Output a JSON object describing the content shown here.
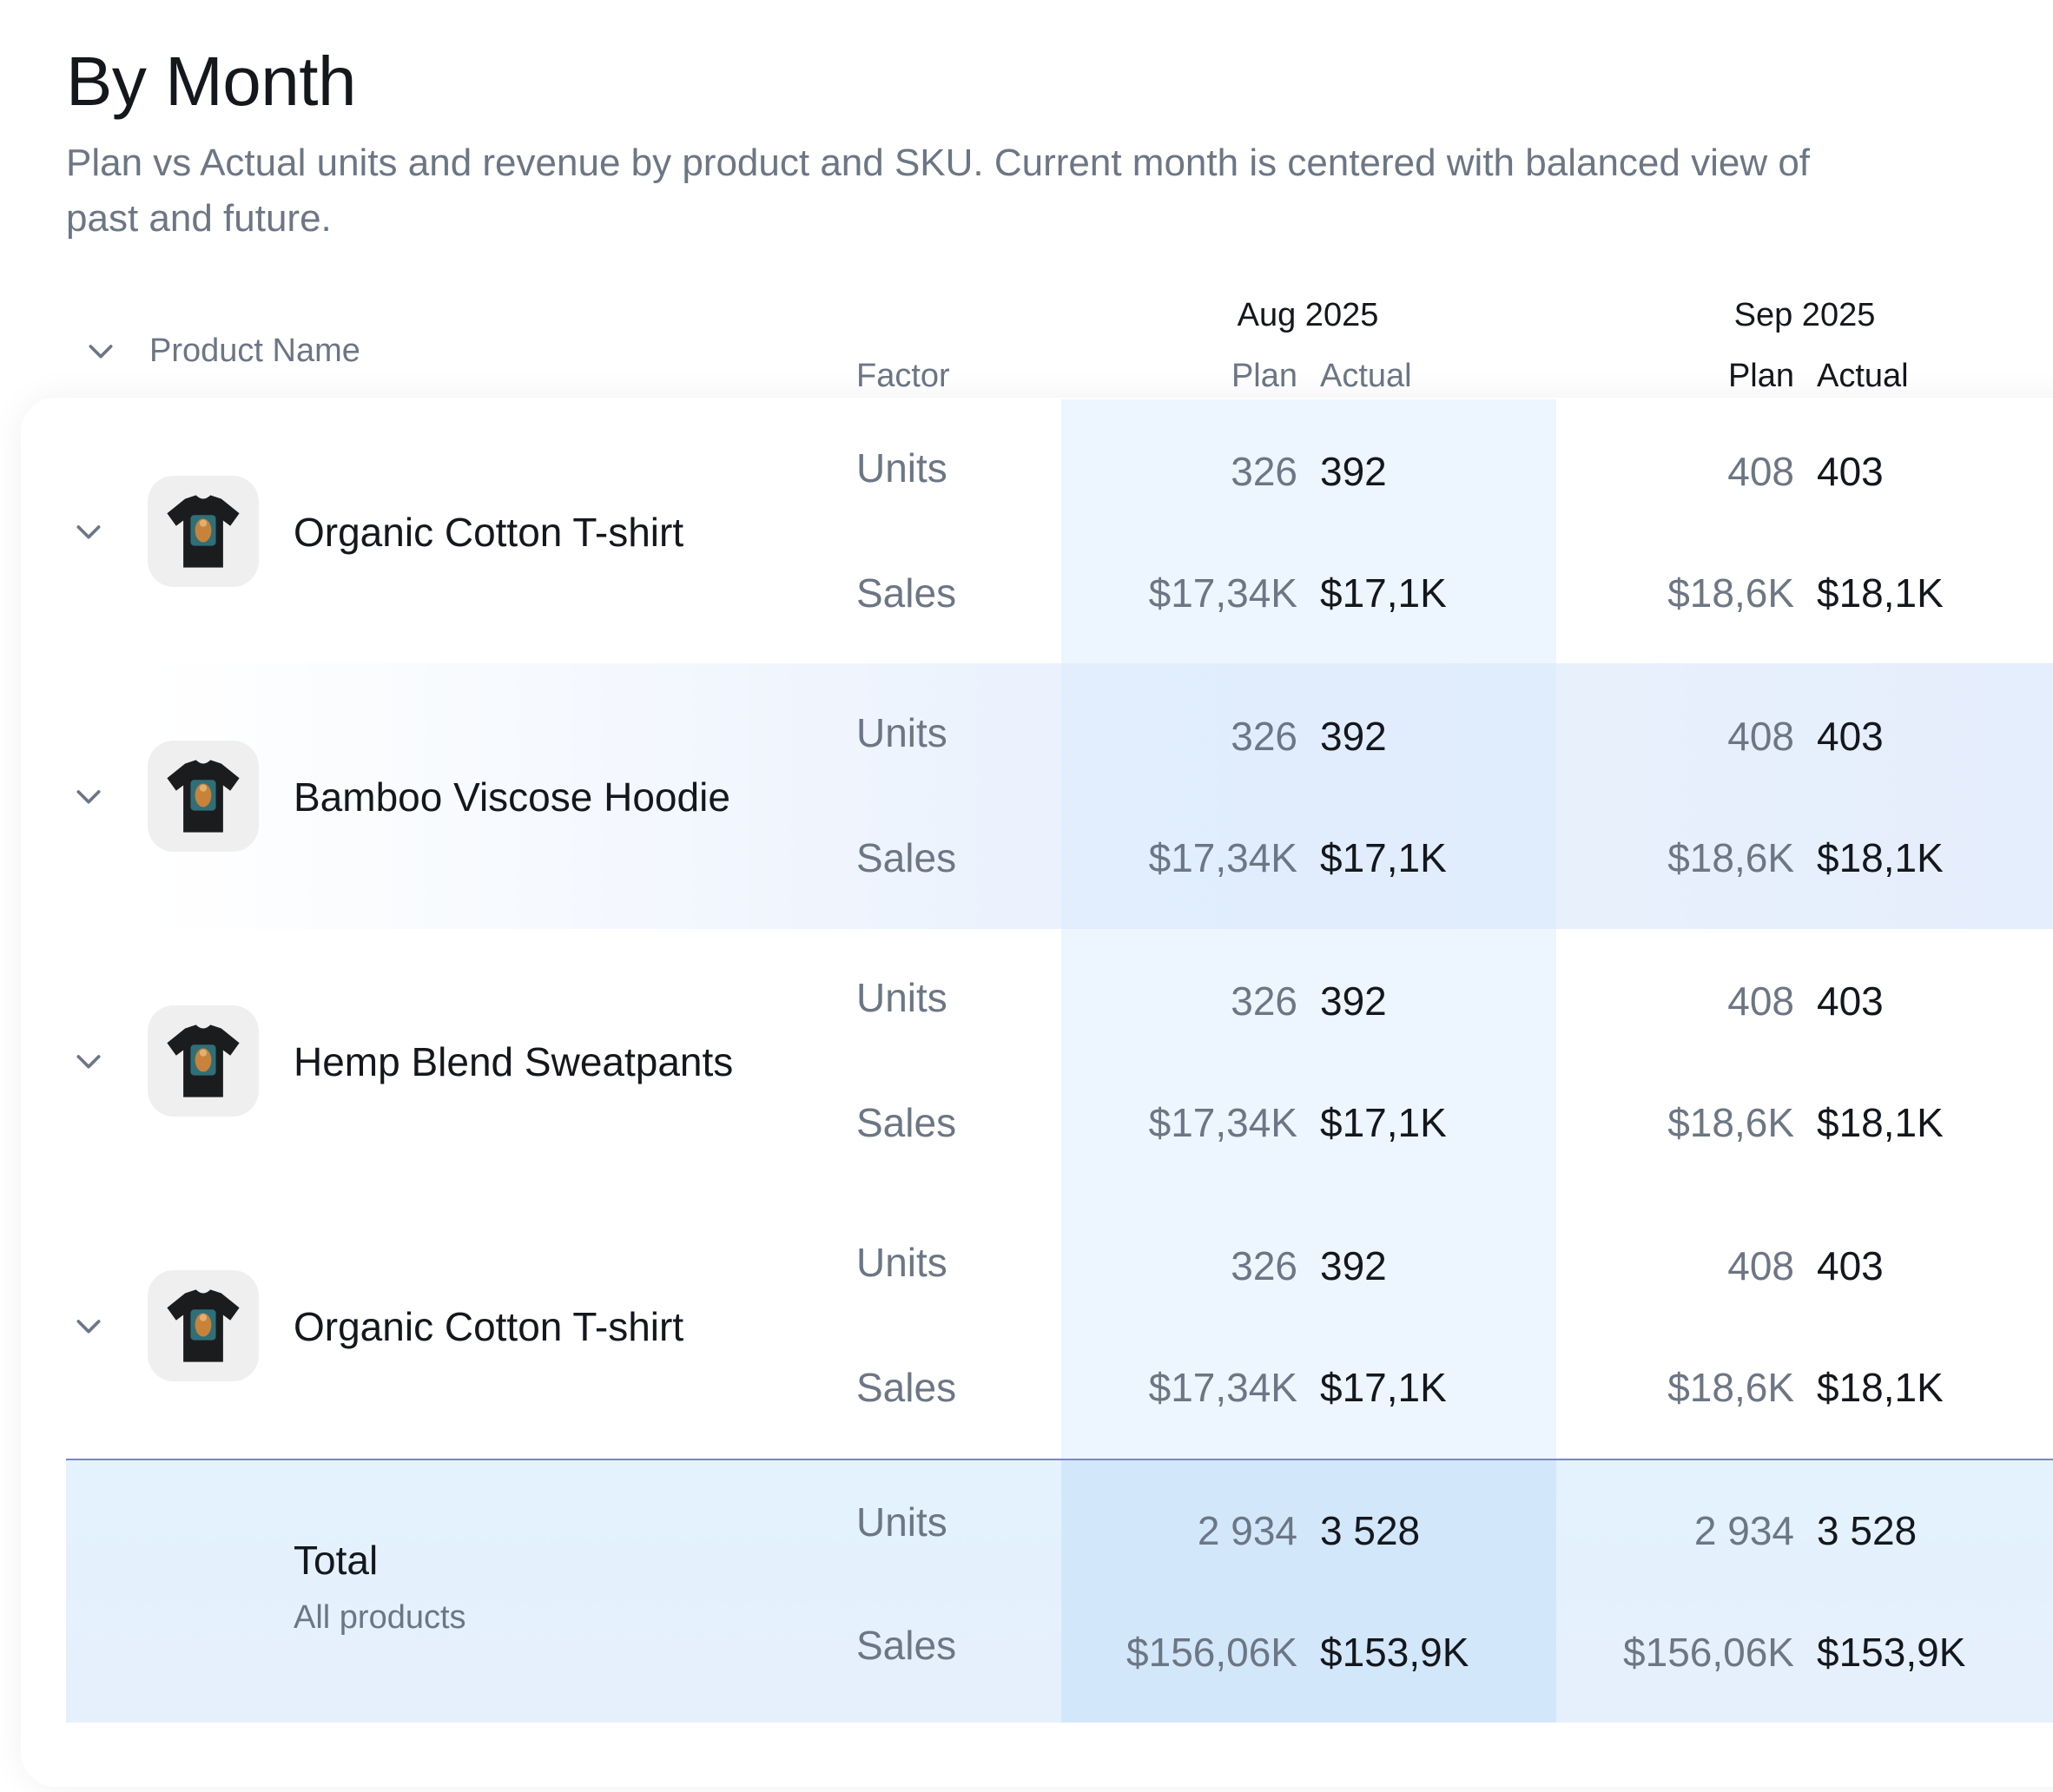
{
  "title": "By Month",
  "subtitle": "Plan vs Actual units and revenue by product and SKU. Current month is centered with balanced view of past and future.",
  "header": {
    "product_name": "Product Name",
    "factor": "Factor",
    "months": [
      {
        "label": "Aug 2025",
        "plan": "Plan",
        "actual": "Actual"
      },
      {
        "label": "Sep 2025",
        "plan": "Plan",
        "actual": "Actual"
      }
    ]
  },
  "rows": [
    {
      "name": "Organic Cotton T-shirt",
      "units_label": "Units",
      "sales_label": "Sales",
      "aug": {
        "units_plan": "326",
        "units_actual": "392",
        "sales_plan": "$17,34K",
        "sales_actual": "$17,1K"
      },
      "sep": {
        "units_plan": "408",
        "units_actual": "403",
        "sales_plan": "$18,6K",
        "sales_actual": "$18,1K"
      }
    },
    {
      "name": "Bamboo Viscose Hoodie",
      "units_label": "Units",
      "sales_label": "Sales",
      "aug": {
        "units_plan": "326",
        "units_actual": "392",
        "sales_plan": "$17,34K",
        "sales_actual": "$17,1K"
      },
      "sep": {
        "units_plan": "408",
        "units_actual": "403",
        "sales_plan": "$18,6K",
        "sales_actual": "$18,1K"
      }
    },
    {
      "name": "Hemp Blend Sweatpants",
      "units_label": "Units",
      "sales_label": "Sales",
      "aug": {
        "units_plan": "326",
        "units_actual": "392",
        "sales_plan": "$17,34K",
        "sales_actual": "$17,1K"
      },
      "sep": {
        "units_plan": "408",
        "units_actual": "403",
        "sales_plan": "$18,6K",
        "sales_actual": "$18,1K"
      }
    },
    {
      "name": "Organic Cotton T-shirt",
      "units_label": "Units",
      "sales_label": "Sales",
      "aug": {
        "units_plan": "326",
        "units_actual": "392",
        "sales_plan": "$17,34K",
        "sales_actual": "$17,1K"
      },
      "sep": {
        "units_plan": "408",
        "units_actual": "403",
        "sales_plan": "$18,6K",
        "sales_actual": "$18,1K"
      }
    }
  ],
  "total": {
    "name": "Total",
    "sub": "All products",
    "units_label": "Units",
    "sales_label": "Sales",
    "aug": {
      "units_plan": "2 934",
      "units_actual": "3 528",
      "sales_plan": "$156,06K",
      "sales_actual": "$153,9K"
    },
    "sep": {
      "units_plan": "2 934",
      "units_actual": "3 528",
      "sales_plan": "$156,06K",
      "sales_actual": "$153,9K"
    }
  },
  "icons": {
    "chevron": "chevron-down-icon",
    "thumbnail": "tshirt-thumbnail"
  },
  "colors": {
    "current_month_band": "#d6e8fc",
    "total_band": "#e3f2fd",
    "divider": "#7a86c8",
    "muted_text": "#6c7684"
  }
}
